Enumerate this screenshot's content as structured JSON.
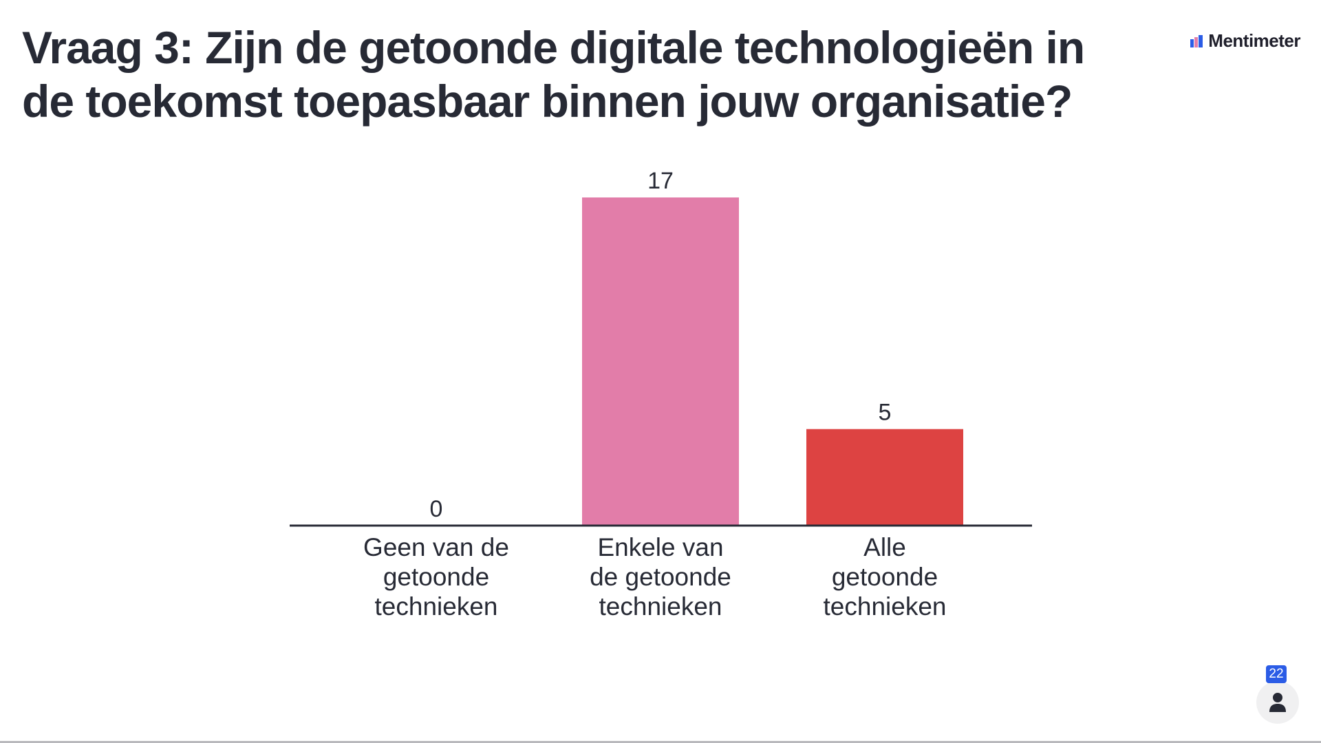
{
  "slide": {
    "title": "Vraag 3: Zijn de getoonde digitale technologieën in de toekomst toepasbaar binnen jouw organisatie?"
  },
  "brand": {
    "name": "Mentimeter",
    "icon": "mentimeter-logo-icon"
  },
  "participants": {
    "count": "22",
    "icon": "person-icon"
  },
  "chart_data": {
    "type": "bar",
    "title": "",
    "xlabel": "",
    "ylabel": "",
    "categories": [
      [
        "Geen van de",
        "getoonde",
        "technieken"
      ],
      [
        "Enkele van",
        "de getoonde",
        "technieken"
      ],
      [
        "Alle",
        "getoonde",
        "technieken"
      ]
    ],
    "values": [
      0,
      17,
      5
    ],
    "colors": [
      "#e27da9",
      "#e27da9",
      "#dd4342"
    ],
    "ylim": [
      0,
      17
    ],
    "grid": false,
    "legend": "none"
  }
}
